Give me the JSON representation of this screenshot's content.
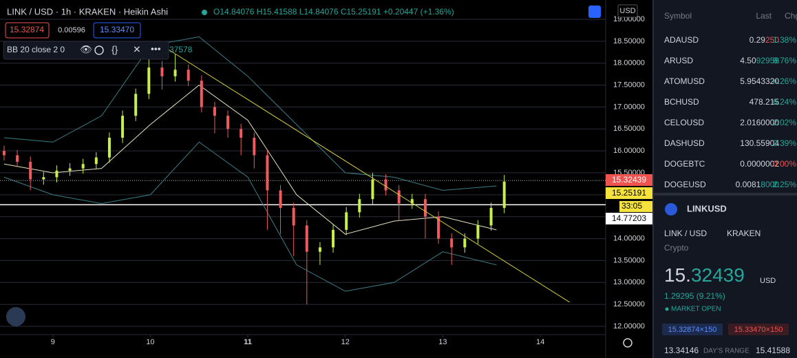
{
  "header": {
    "symbol": "LINK / USD · 1h · KRAKEN · Heikin Ashi",
    "ohlc": "O14.84076 H15.41588 L14.84076 C15.25191 +0.20447 (+1.36%)",
    "bid": "15.32874",
    "spread": "0.00596",
    "ask": "15.33470",
    "indicator": "BB 20 close 2 0",
    "indicator_value": "37578",
    "currency": "USD"
  },
  "axis_labels": [
    "15.32439",
    "15.25191",
    "33:05",
    "14.77203"
  ],
  "chart_data": {
    "type": "candlestick",
    "x": [
      8.5,
      8.635,
      8.77,
      8.905,
      9.04,
      9.175,
      9.31,
      9.445,
      9.58,
      9.715,
      9.85,
      9.985,
      10.12,
      10.255,
      10.39,
      10.525,
      10.66,
      10.795,
      10.93,
      11.065,
      11.2,
      11.335,
      11.47,
      11.605,
      11.74,
      11.875,
      12.01,
      12.145,
      12.28,
      12.415,
      12.55,
      12.685,
      12.82,
      12.955,
      13.09,
      13.225,
      13.36,
      13.495,
      13.63
    ],
    "open": [
      16.0,
      15.9,
      15.75,
      15.35,
      15.4,
      15.55,
      15.6,
      15.7,
      15.85,
      16.3,
      16.8,
      17.3,
      17.9,
      17.7,
      17.85,
      17.6,
      17.0,
      16.8,
      16.5,
      16.3,
      15.9,
      15.1,
      14.7,
      14.3,
      13.7,
      13.8,
      14.2,
      14.6,
      14.9,
      15.35,
      15.1,
      14.8,
      14.9,
      14.5,
      14.0,
      13.8,
      14.0,
      14.3,
      14.7
    ],
    "high": [
      16.12,
      16.02,
      15.87,
      15.52,
      15.67,
      15.72,
      15.82,
      15.97,
      16.42,
      16.92,
      17.42,
      18.1,
      18.05,
      18.2,
      17.97,
      17.72,
      17.12,
      16.92,
      16.62,
      16.42,
      16.02,
      15.22,
      14.82,
      14.42,
      13.92,
      14.32,
      14.72,
      15.02,
      15.5,
      15.47,
      15.22,
      15.02,
      15.02,
      14.62,
      14.12,
      14.12,
      14.42,
      14.82,
      15.45
    ],
    "low": [
      15.78,
      15.63,
      15.1,
      15.23,
      15.28,
      15.43,
      15.48,
      15.58,
      15.73,
      16.18,
      16.68,
      17.18,
      17.4,
      17.58,
      17.48,
      16.88,
      16.4,
      16.3,
      15.9,
      15.6,
      14.2,
      14.1,
      13.6,
      12.5,
      13.4,
      13.68,
      14.08,
      14.48,
      14.78,
      14.98,
      14.4,
      14.68,
      14.0,
      13.88,
      13.4,
      13.68,
      13.88,
      14.18,
      14.58
    ],
    "close": [
      15.9,
      15.75,
      15.35,
      15.4,
      15.55,
      15.6,
      15.7,
      15.85,
      16.3,
      16.8,
      17.3,
      17.9,
      17.7,
      17.85,
      17.6,
      17.0,
      16.8,
      16.5,
      16.3,
      15.9,
      15.1,
      14.7,
      14.3,
      13.7,
      13.8,
      14.2,
      14.6,
      14.9,
      15.35,
      15.1,
      14.8,
      14.9,
      14.5,
      14.0,
      13.8,
      14.0,
      14.3,
      14.7,
      15.3
    ],
    "up_color": "#c8f04c",
    "down_color": "#ef5a5f",
    "bands": {
      "x": [
        8.5,
        9.0,
        9.5,
        10.0,
        10.5,
        11.0,
        11.5,
        12.0,
        12.5,
        13.0,
        13.55
      ],
      "upper": [
        16.3,
        16.2,
        16.8,
        18.4,
        18.6,
        17.7,
        16.6,
        15.5,
        15.4,
        15.1,
        15.2
      ],
      "middle": [
        15.7,
        15.5,
        15.6,
        16.6,
        17.5,
        16.7,
        15.0,
        14.1,
        14.4,
        14.5,
        14.2
      ],
      "lower": [
        15.4,
        15.0,
        14.8,
        15.0,
        16.2,
        15.4,
        13.4,
        12.8,
        13.0,
        13.7,
        13.4
      ],
      "band_color": "#3a7f88",
      "middle_color": "#e8e3c0"
    },
    "trendline": {
      "x": [
        10.05,
        14.3
      ],
      "y": [
        18.5,
        12.55
      ],
      "color": "#d4cf3c"
    },
    "last_price": 15.32439,
    "price_line": 14.77203,
    "xlim": [
      8.458,
      14.67
    ],
    "ylim": [
      12.0,
      19.0
    ],
    "xticks": [
      9,
      10,
      11,
      12,
      13,
      14
    ],
    "yticks": [
      {
        "value": 12.0,
        "label": "12.00000"
      },
      {
        "value": 12.5,
        "label": "12.50000"
      },
      {
        "value": 13.0,
        "label": "13.00000"
      },
      {
        "value": 13.5,
        "label": "13.50000"
      },
      {
        "value": 14.0,
        "label": "14.00000"
      },
      {
        "value": 14.5,
        "label": "14.50000"
      },
      {
        "value": 15.0,
        "label": "15.00000"
      },
      {
        "value": 15.5,
        "label": "15.50000"
      },
      {
        "value": 16.0,
        "label": "16.00000"
      },
      {
        "value": 16.5,
        "label": "16.50000"
      },
      {
        "value": 17.0,
        "label": "17.00000"
      },
      {
        "value": 17.5,
        "label": "17.50000"
      },
      {
        "value": 18.0,
        "label": "18.00000"
      },
      {
        "value": 18.5,
        "label": "18.50000"
      },
      {
        "value": 19.0,
        "label": "19.00000"
      }
    ],
    "grid": true
  },
  "watchlist": {
    "columns": [
      "Symbol",
      "Last",
      "Chg"
    ],
    "rows": [
      {
        "symbol": "ADAUSD",
        "last": [
          "0.29",
          "250"
        ],
        "tail_color": "#ef5350",
        "change": "1.38%",
        "change_color": "#26a69a"
      },
      {
        "symbol": "ARUSD",
        "last": [
          "4.50",
          "92959"
        ],
        "tail_color": "#26a69a",
        "change": "9.76%",
        "change_color": "#26a69a"
      },
      {
        "symbol": "ATOMUSD",
        "last": [
          "5.9543320"
        ],
        "tail_color": "#d1d4dc",
        "change": "4.26%",
        "change_color": "#26a69a"
      },
      {
        "symbol": "BCHUSD",
        "last": [
          "478.215"
        ],
        "tail_color": "#d1d4dc",
        "change": "6.24%",
        "change_color": "#26a69a"
      },
      {
        "symbol": "CELOUSD",
        "last": [
          "2.0160000"
        ],
        "tail_color": "#d1d4dc",
        "change": "2.02%",
        "change_color": "#26a69a"
      },
      {
        "symbol": "DASHUSD",
        "last": [
          "130.55904"
        ],
        "tail_color": "#d1d4dc",
        "change": "2.39%",
        "change_color": "#26a69a"
      },
      {
        "symbol": "DOGEBTC",
        "last": [
          "0.0000002"
        ],
        "tail_color": "#d1d4dc",
        "change": "0.00%",
        "change_color": "#ef5350"
      },
      {
        "symbol": "DOGEUSD",
        "last": [
          "0.0081",
          "8000"
        ],
        "tail_color": "#26a69a",
        "change": "2.25%",
        "change_color": "#26a69a"
      }
    ]
  },
  "details": {
    "symbol": "LINKUSD",
    "pair": "LINK / USD",
    "exchange": "KRAKEN",
    "category": "Crypto",
    "price_main": "15.",
    "price_tail": "32439",
    "currency": "USD",
    "change": "1.29295 (9.21%)",
    "status": "MARKET OPEN",
    "bid": "15.32874×150",
    "ask": "15.33470×150",
    "range_low": "13.34146",
    "range_label": "DAY'S RANGE",
    "range_high": "15.41588"
  }
}
